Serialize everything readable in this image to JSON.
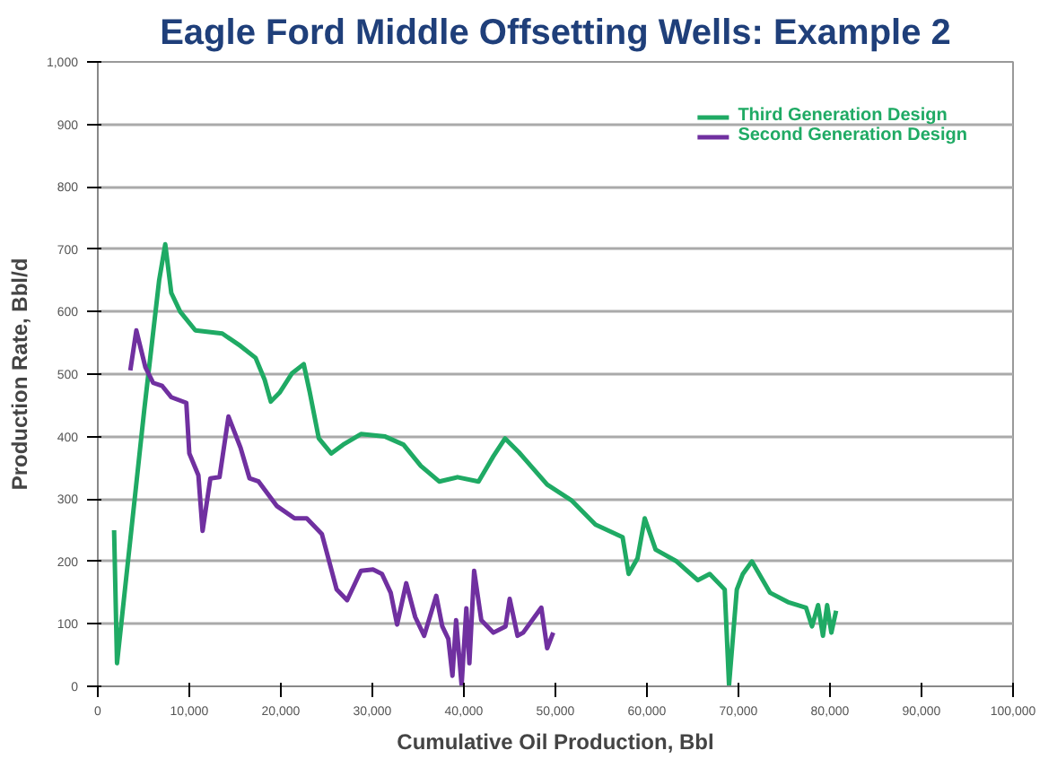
{
  "chart_data": {
    "type": "line",
    "title": "Eagle Ford Middle Offsetting Wells: Example 2",
    "xlabel": "Cumulative Oil Production, Bbl",
    "ylabel": "Production Rate, Bbl/d",
    "xlim": [
      0,
      100000
    ],
    "ylim": [
      0,
      1000
    ],
    "xticks": [
      0,
      {
        "value": 10000,
        "label": "10,000"
      },
      {
        "value": 20000,
        "label": "20,000"
      },
      {
        "value": 30000,
        "label": "30,000"
      },
      {
        "value": 40000,
        "label": "40,000"
      },
      {
        "value": 50000,
        "label": "50,000"
      },
      {
        "value": 60000,
        "label": "60,000"
      },
      {
        "value": 70000,
        "label": "70,000"
      },
      {
        "value": 80000,
        "label": "80,000"
      },
      {
        "value": 90000,
        "label": "90,000"
      },
      {
        "value": 100000,
        "label": "100,000"
      }
    ],
    "yticks": [
      0,
      100,
      200,
      300,
      400,
      500,
      600,
      700,
      800,
      900,
      {
        "value": 1000,
        "label": "1,000"
      }
    ],
    "grid": "y",
    "legend": "top right",
    "line_style": "solid",
    "series": [
      {
        "name": "Third Generation Design",
        "color": "#1faa64",
        "x": [
          1780,
          2100,
          5070,
          6700,
          7370,
          8030,
          9000,
          10660,
          13600,
          15600,
          17240,
          18230,
          18900,
          19900,
          21200,
          22500,
          23160,
          24150,
          25500,
          26800,
          28750,
          31400,
          33400,
          35300,
          37300,
          39300,
          41600,
          43200,
          44500,
          46000,
          49100,
          51740,
          54380,
          57340,
          58000,
          58970,
          59760,
          60950,
          63250,
          65550,
          66860,
          68500,
          68970,
          69820,
          70480,
          71470,
          73440,
          75400,
          77380,
          78040,
          78700,
          79230,
          79690,
          80150,
          80670
        ],
        "values": [
          250,
          37,
          442,
          650,
          708,
          630,
          600,
          570,
          565,
          545,
          526,
          491,
          456,
          471,
          501,
          516,
          471,
          397,
          373,
          387,
          404,
          400,
          387,
          353,
          328,
          335,
          328,
          368,
          397,
          375,
          323,
          298,
          259,
          239,
          180,
          205,
          269,
          219,
          200,
          170,
          180,
          155,
          2,
          155,
          180,
          200,
          150,
          135,
          126,
          96,
          130,
          81,
          130,
          86,
          121
        ]
      },
      {
        "name": "Second Generation Design",
        "color": "#7030a0",
        "x": [
          3550,
          4210,
          5200,
          6050,
          7040,
          8030,
          9670,
          10000,
          10990,
          11450,
          12300,
          13300,
          14280,
          15600,
          16580,
          17570,
          19540,
          21500,
          22830,
          24480,
          26100,
          27240,
          28750,
          30070,
          31050,
          32000,
          32700,
          33700,
          34680,
          35660,
          36980,
          37640,
          38300,
          38750,
          39150,
          39750,
          40270,
          40600,
          41120,
          41900,
          43230,
          44550,
          45000,
          45860,
          46480,
          48460,
          49100,
          49760
        ],
        "values": [
          506,
          570,
          511,
          486,
          481,
          463,
          454,
          373,
          338,
          249,
          333,
          335,
          432,
          382,
          333,
          328,
          289,
          269,
          269,
          244,
          155,
          138,
          185,
          187,
          180,
          150,
          99,
          165,
          111,
          81,
          145,
          96,
          76,
          17,
          106,
          2,
          125,
          37,
          185,
          106,
          86,
          96,
          140,
          81,
          86,
          126,
          61,
          86
        ]
      }
    ]
  }
}
